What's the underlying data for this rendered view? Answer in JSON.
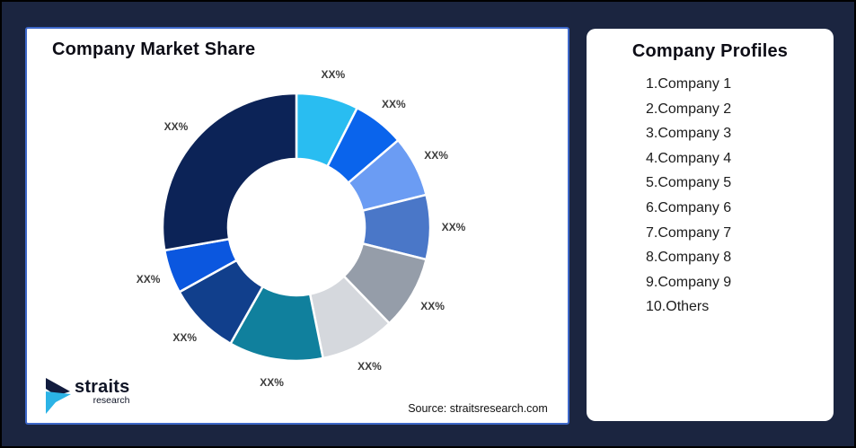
{
  "page": {
    "background_color": "#1B2540",
    "frame_color": "#000000"
  },
  "left_card": {
    "title": "Company Market Share",
    "source": "Source: straitsresearch.com",
    "border_color": "#3E68C9",
    "logo": {
      "name": "straits",
      "sub": "research",
      "navy": "#121C3E",
      "cyan": "#2BB3E6"
    }
  },
  "right_card": {
    "title": "Company Profiles",
    "items": [
      "1.Company 1",
      "2.Company 2",
      "3.Company 3",
      "4.Company 4",
      "5.Company 5",
      "6.Company 6",
      "7.Company 7",
      "8.Company 8",
      "9.Company 9",
      "10.Others"
    ]
  },
  "chart_data": {
    "type": "pie",
    "subtype": "donut",
    "title": "Company Market Share",
    "value_labels_are_placeholders": true,
    "start_angle_deg": 0,
    "direction": "clockwise",
    "inner_radius_ratio": 0.51,
    "segments": [
      {
        "name": "Company 1",
        "value_label": "XX%",
        "sweep_deg": 27.0,
        "color": "#29BDF1"
      },
      {
        "name": "Company 2",
        "value_label": "XX%",
        "sweep_deg": 22.5,
        "color": "#0A64EC"
      },
      {
        "name": "Company 3",
        "value_label": "XX%",
        "sweep_deg": 26.5,
        "color": "#6B9CF3"
      },
      {
        "name": "Company 4",
        "value_label": "XX%",
        "sweep_deg": 28.0,
        "color": "#4A77C8"
      },
      {
        "name": "Company 5",
        "value_label": "XX%",
        "sweep_deg": 32.0,
        "color": "#959DA9"
      },
      {
        "name": "Company 6",
        "value_label": "XX%",
        "sweep_deg": 32.5,
        "color": "#D5D8DD"
      },
      {
        "name": "Company 7",
        "value_label": "XX%",
        "sweep_deg": 41.0,
        "color": "#10809D"
      },
      {
        "name": "Company 8",
        "value_label": "XX%",
        "sweep_deg": 31.5,
        "color": "#113F8C"
      },
      {
        "name": "Company 9",
        "value_label": "XX%",
        "sweep_deg": 19.0,
        "color": "#0B57DF"
      },
      {
        "name": "Others",
        "value_label": "XX%",
        "sweep_deg": 100.0,
        "color": "#0C2357"
      }
    ]
  }
}
